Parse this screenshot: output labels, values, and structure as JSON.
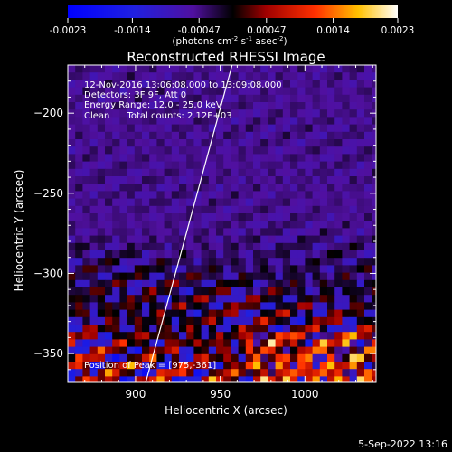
{
  "chart_data": {
    "type": "heatmap",
    "title": "Reconstructed RHESSI Image",
    "xlabel": "Heliocentric X (arcsec)",
    "ylabel": "Heliocentric Y (arcsec)",
    "xlim": [
      860,
      1042
    ],
    "ylim": [
      -368,
      -170
    ],
    "x_ticks": [
      "900",
      "950",
      "1000"
    ],
    "x_tick_values": [
      900,
      950,
      1000
    ],
    "y_ticks": [
      "-200",
      "-250",
      "-300",
      "-350"
    ],
    "y_tick_values": [
      -200,
      -250,
      -300,
      -350
    ],
    "colorbar": {
      "min": -0.0023,
      "max": 0.0023,
      "tick_labels": [
        "-0.0023",
        "-0.0014",
        "-0.00047",
        "0.00047",
        "0.0014",
        "0.0023"
      ],
      "tick_values": [
        -0.0023,
        -0.0014,
        -0.00047,
        0.00047,
        0.0014,
        0.0023
      ],
      "unit_label": "(photons cm",
      "unit_sup1": "-2",
      "unit_mid": " s",
      "unit_sup2": "-1",
      "unit_end": " asec",
      "unit_sup3": "-2",
      "unit_close": ")"
    },
    "annotations": [
      "12-Nov-2016 13:06:08.000 to 13:09:08.000",
      "Detectors: 3F 9F, Att 0",
      "Energy Range: 12.0 - 25.0 keV",
      "Clean      Total counts: 2.12E+03"
    ],
    "peak_label": "Position of Peak = [975,-361]",
    "limb_line": [
      [
        906,
        -368
      ],
      [
        957,
        -170
      ]
    ],
    "grid": false
  },
  "footer": {
    "date": "5-Sep-2022 13:16"
  }
}
